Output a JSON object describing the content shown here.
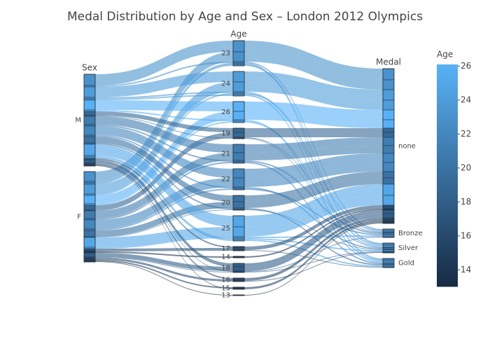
{
  "chart_data": {
    "type": "parcats",
    "title": "Medal Distribution by Age and Sex – London 2012 Olympics",
    "dimensions": [
      {
        "label": "Sex",
        "categories": [
          "M",
          "F"
        ]
      },
      {
        "label": "Age",
        "categories": [
          "23",
          "24",
          "26",
          "19",
          "21",
          "22",
          "20",
          "25",
          "17",
          "14",
          "18",
          "16",
          "15",
          "13"
        ]
      },
      {
        "label": "Medal",
        "categories": [
          "none",
          "Bronze",
          "Silver",
          "Gold"
        ]
      }
    ],
    "flows": [
      [
        "M",
        "23",
        "none",
        16
      ],
      [
        "F",
        "23",
        "none",
        14
      ],
      [
        "M",
        "23",
        "Bronze",
        2
      ],
      [
        "F",
        "23",
        "Gold",
        2
      ],
      [
        "F",
        "23",
        "Silver",
        2
      ],
      [
        "M",
        "24",
        "none",
        15
      ],
      [
        "F",
        "24",
        "none",
        14
      ],
      [
        "M",
        "24",
        "Silver",
        2
      ],
      [
        "F",
        "24",
        "Bronze",
        2
      ],
      [
        "M",
        "24",
        "Gold",
        2
      ],
      [
        "M",
        "26",
        "none",
        14
      ],
      [
        "F",
        "26",
        "none",
        12
      ],
      [
        "M",
        "26",
        "Gold",
        2
      ],
      [
        "F",
        "26",
        "Silver",
        2
      ],
      [
        "M",
        "19",
        "none",
        6
      ],
      [
        "F",
        "19",
        "none",
        7
      ],
      [
        "F",
        "19",
        "Bronze",
        1
      ],
      [
        "M",
        "19",
        "Silver",
        1
      ],
      [
        "M",
        "21",
        "none",
        12
      ],
      [
        "F",
        "21",
        "none",
        11
      ],
      [
        "M",
        "21",
        "Bronze",
        2
      ],
      [
        "F",
        "21",
        "Gold",
        2
      ],
      [
        "M",
        "22",
        "none",
        13
      ],
      [
        "F",
        "22",
        "none",
        13
      ],
      [
        "M",
        "22",
        "Silver",
        2
      ],
      [
        "F",
        "22",
        "Bronze",
        2
      ],
      [
        "M",
        "20",
        "none",
        9
      ],
      [
        "F",
        "20",
        "none",
        9
      ],
      [
        "M",
        "20",
        "Gold",
        2
      ],
      [
        "F",
        "20",
        "Silver",
        1
      ],
      [
        "M",
        "25",
        "none",
        16
      ],
      [
        "F",
        "25",
        "none",
        14
      ],
      [
        "F",
        "25",
        "Bronze",
        2
      ],
      [
        "M",
        "25",
        "Silver",
        2
      ],
      [
        "M",
        "25",
        "Gold",
        2
      ],
      [
        "M",
        "17",
        "none",
        2
      ],
      [
        "F",
        "17",
        "none",
        3
      ],
      [
        "F",
        "17",
        "Gold",
        1
      ],
      [
        "F",
        "14",
        "none",
        2
      ],
      [
        "M",
        "18",
        "none",
        5
      ],
      [
        "F",
        "18",
        "none",
        6
      ],
      [
        "M",
        "18",
        "Bronze",
        1
      ],
      [
        "F",
        "18",
        "Silver",
        1
      ],
      [
        "M",
        "16",
        "none",
        2
      ],
      [
        "F",
        "16",
        "none",
        2
      ],
      [
        "F",
        "16",
        "Silver",
        1
      ],
      [
        "F",
        "15",
        "none",
        2
      ],
      [
        "M",
        "15",
        "none",
        1
      ],
      [
        "F",
        "13",
        "none",
        1
      ]
    ],
    "colorscale": [
      "#172a43",
      "#59b2f7"
    ],
    "colorbar_title": "Age",
    "clim": [
      13,
      26.1
    ],
    "cticks": [
      14,
      16,
      18,
      20,
      22,
      24,
      26
    ]
  }
}
